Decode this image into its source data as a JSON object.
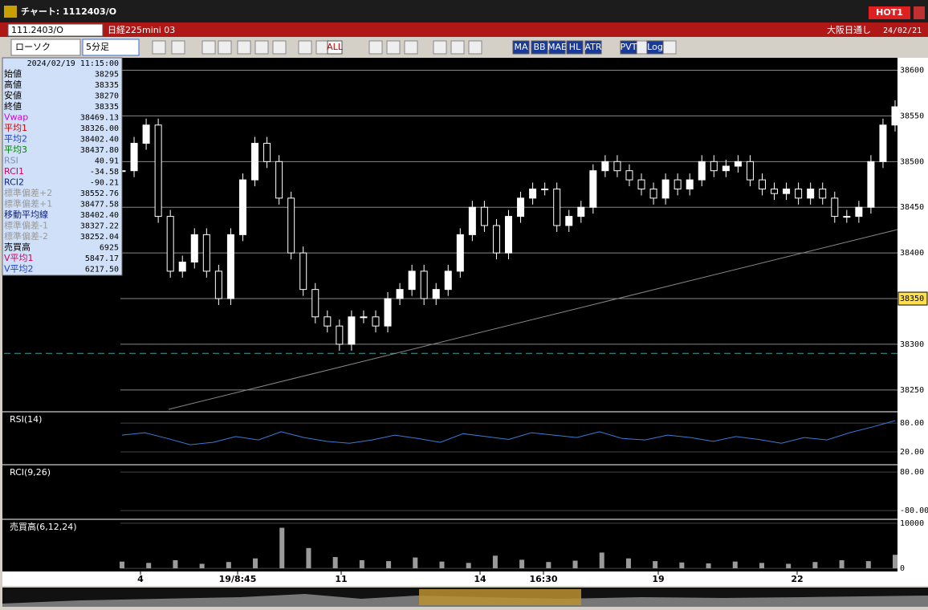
{
  "window": {
    "title": "チャート: 1112403/O",
    "badge": "HOT1"
  },
  "header": {
    "code": "111.2403/O",
    "instrument": "日経225mini 03",
    "session": "大阪日通し",
    "date": "24/02/21"
  },
  "toolbar": {
    "chart_style": "ローソク",
    "interval": "5分足",
    "buttons": [
      "ALL",
      "MA",
      "BB",
      "MAE",
      "HL",
      "ATR",
      "PVT",
      "Log"
    ]
  },
  "info_panel": {
    "timestamp": "2024/02/19 11:15:00",
    "rows": [
      [
        "始値",
        "38295"
      ],
      [
        "高値",
        "38335"
      ],
      [
        "安値",
        "38270"
      ],
      [
        "終値",
        "38335"
      ],
      [
        "Vwap",
        "38469.13"
      ],
      [
        "平均1",
        "38326.00"
      ],
      [
        "平均2",
        "38402.40"
      ],
      [
        "平均3",
        "38437.80"
      ],
      [
        "RSI",
        "40.91"
      ],
      [
        "RCI1",
        "-34.58"
      ],
      [
        "RCI2",
        "-90.21"
      ],
      [
        "標準偏差+2",
        "38552.76"
      ],
      [
        "標準偏差+1",
        "38477.58"
      ],
      [
        "移動平均線",
        "38402.40"
      ],
      [
        "標準偏差-1",
        "38327.22"
      ],
      [
        "標準偏差-2",
        "38252.04"
      ],
      [
        "売買高",
        "6925"
      ],
      [
        "V平均1",
        "5847.17"
      ],
      [
        "V平均2",
        "6217.50"
      ]
    ]
  },
  "chart_data": [
    {
      "type": "candlestick",
      "closes": [
        38490,
        38520,
        38540,
        38440,
        38380,
        38390,
        38420,
        38380,
        38350,
        38420,
        38480,
        38520,
        38500,
        38460,
        38400,
        38360,
        38330,
        38320,
        38300,
        38330,
        38330,
        38320,
        38350,
        38360,
        38380,
        38350,
        38360,
        38380,
        38420,
        38450,
        38430,
        38400,
        38440,
        38460,
        38470,
        38470,
        38430,
        38440,
        38450,
        38490,
        38500,
        38490,
        38480,
        38470,
        38460,
        38480,
        38470,
        38480,
        38500,
        38490,
        38495,
        38500,
        38480,
        38470,
        38465,
        38470,
        38460,
        38470,
        38460,
        38440,
        38440,
        38450,
        38500,
        38540,
        38560
      ],
      "ylim": [
        38227,
        38611
      ],
      "yticks": [
        38250,
        38300,
        38350,
        38400,
        38450,
        38500,
        38550,
        38600
      ],
      "current_price": 38350,
      "dashed_level": 38290,
      "x_labels": [
        "4",
        "19/8:45",
        "11",
        "14",
        "16:30",
        "19",
        "22"
      ]
    },
    {
      "type": "line",
      "title": "RSI(14)",
      "color": "#3a7bd5",
      "values": [
        55,
        60,
        48,
        35,
        40,
        52,
        45,
        62,
        50,
        42,
        38,
        45,
        55,
        48,
        40,
        58,
        52,
        46,
        60,
        55,
        50,
        62,
        48,
        45,
        55,
        50,
        42,
        52,
        46,
        38,
        50,
        45,
        60,
        72,
        85
      ],
      "ylim": [
        -5,
        102
      ],
      "yticks": [
        {
          "value": 80,
          "label": "80.00"
        },
        {
          "value": 20,
          "label": "20.00"
        }
      ]
    },
    {
      "type": "line",
      "title": "RCI(9,26)",
      "ylim": [
        -113,
        107
      ],
      "yticks": [
        {
          "value": 80,
          "label": "80.00"
        },
        {
          "value": -80,
          "label": "-80.00"
        }
      ]
    },
    {
      "type": "bar",
      "title": "売買高(6,12,24)",
      "color": "#9a9a9a",
      "values": [
        1500,
        1200,
        1800,
        1000,
        1400,
        2200,
        9000,
        4500,
        2500,
        1800,
        1600,
        2400,
        1500,
        1200,
        2800,
        1900,
        1400,
        1700,
        3500,
        2200,
        1600,
        1300,
        1100,
        1500,
        1200,
        1000,
        1400,
        1800,
        1600,
        3000
      ],
      "ylim": [
        -700,
        10700
      ],
      "yticks": [
        10000,
        0
      ]
    }
  ]
}
